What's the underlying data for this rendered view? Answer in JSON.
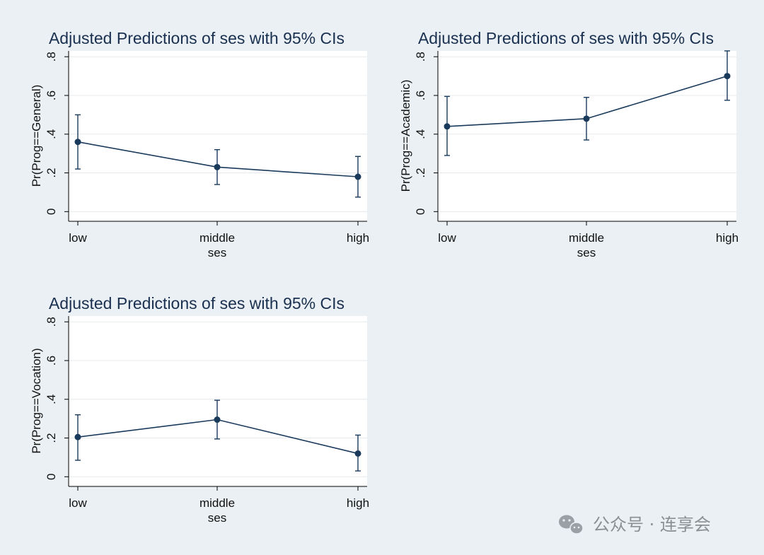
{
  "chart_data": [
    {
      "type": "line",
      "title": "Adjusted Predictions of ses with 95% CIs",
      "xlabel": "ses",
      "ylabel": "Pr(Prog==General)",
      "categories": [
        "low",
        "middle",
        "high"
      ],
      "series": [
        {
          "values": [
            0.36,
            0.23,
            0.18
          ],
          "ci_lower": [
            0.22,
            0.14,
            0.075
          ],
          "ci_upper": [
            0.5,
            0.32,
            0.285
          ]
        }
      ],
      "yticks": [
        0,
        0.2,
        0.4,
        0.6,
        0.8
      ],
      "ytick_labels": [
        "0",
        ".2",
        ".4",
        ".6",
        ".8"
      ],
      "ylim": [
        -0.05,
        0.83
      ],
      "grid": true
    },
    {
      "type": "line",
      "title": "Adjusted Predictions of ses with 95% CIs",
      "xlabel": "ses",
      "ylabel": "Pr(Prog==Academic)",
      "categories": [
        "low",
        "middle",
        "high"
      ],
      "series": [
        {
          "values": [
            0.44,
            0.48,
            0.7
          ],
          "ci_lower": [
            0.29,
            0.37,
            0.575
          ],
          "ci_upper": [
            0.595,
            0.59,
            0.83
          ]
        }
      ],
      "yticks": [
        0,
        0.2,
        0.4,
        0.6,
        0.8
      ],
      "ytick_labels": [
        "0",
        ".2",
        ".4",
        ".6",
        ".8"
      ],
      "ylim": [
        -0.05,
        0.83
      ],
      "grid": true
    },
    {
      "type": "line",
      "title": "Adjusted Predictions of ses with 95% CIs",
      "xlabel": "ses",
      "ylabel": "Pr(Prog==Vocation)",
      "categories": [
        "low",
        "middle",
        "high"
      ],
      "series": [
        {
          "values": [
            0.205,
            0.295,
            0.12
          ],
          "ci_lower": [
            0.085,
            0.195,
            0.03
          ],
          "ci_upper": [
            0.32,
            0.395,
            0.215
          ]
        }
      ],
      "yticks": [
        0,
        0.2,
        0.4,
        0.6,
        0.8
      ],
      "ytick_labels": [
        "0",
        ".2",
        ".4",
        ".6",
        ".8"
      ],
      "ylim": [
        -0.05,
        0.83
      ],
      "grid": true
    }
  ],
  "watermark": {
    "text": "公众号 · 连享会",
    "icon": "wechat-icon"
  },
  "colors": {
    "background": "#eaf0f3",
    "plot_bg": "#ffffff",
    "line": "#1a3a5c",
    "grid": "#e6eaed",
    "title": "#1a3050"
  }
}
